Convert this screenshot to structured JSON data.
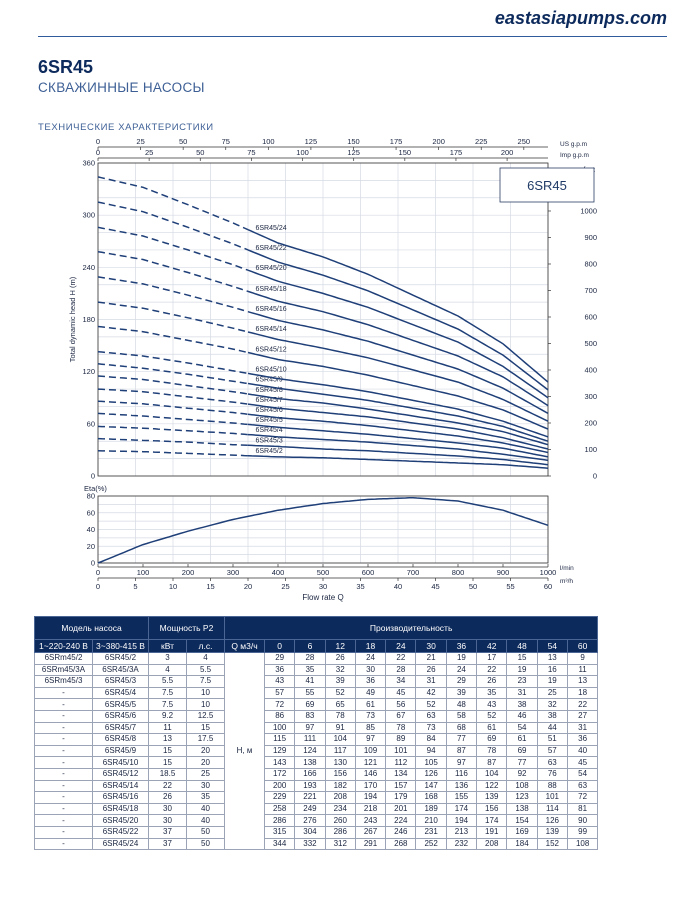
{
  "brand": "eastasiapumps.com",
  "header": {
    "title": "6SR45",
    "subtitle": "СКВАЖИННЫЕ НАСОСЫ",
    "section": "ТЕХНИЧЕСКИЕ ХАРАКТЕРИСТИКИ"
  },
  "colors": {
    "navy": "#0d2a5c",
    "curve": "#1f3f78",
    "grid": "#d5dae3"
  },
  "chart_data": [
    {
      "type": "line",
      "title": "6SR45",
      "ylabel": "Total dynamic head H (m)",
      "ylabel_right": "feet",
      "xlabel": "Flow rate Q",
      "xlim": [
        0,
        60
      ],
      "ylim": [
        0,
        360
      ],
      "yticks": [
        0,
        60,
        120,
        180,
        240,
        300,
        360
      ],
      "feet_ticks": [
        0,
        100,
        200,
        300,
        400,
        500,
        600,
        700,
        800,
        900,
        1000
      ],
      "top_axes": [
        {
          "unit": "US g.p.m",
          "ticks": [
            "0",
            "25",
            "50",
            "75",
            "100",
            "125",
            "150",
            "175",
            "200",
            "225",
            "250"
          ],
          "max": 264.2
        },
        {
          "unit": "Imp g.p.m",
          "ticks": [
            "0",
            "25",
            "50",
            "75",
            "100",
            "125",
            "150",
            "175",
            "200"
          ],
          "max": 220
        }
      ],
      "x": [
        0,
        6,
        12,
        18,
        24,
        30,
        36,
        42,
        48,
        54,
        60
      ],
      "dashed_until": 20,
      "series": [
        {
          "name": "6SR45/2",
          "values": [
            29,
            28,
            26,
            24,
            22,
            21,
            19,
            17,
            15,
            13,
            9
          ]
        },
        {
          "name": "6SR45/3",
          "values": [
            43,
            41,
            39,
            36,
            34,
            31,
            29,
            26,
            23,
            19,
            13
          ]
        },
        {
          "name": "6SR45/4",
          "values": [
            57,
            55,
            52,
            49,
            45,
            42,
            39,
            35,
            31,
            25,
            18
          ]
        },
        {
          "name": "6SR45/5",
          "values": [
            72,
            69,
            65,
            61,
            56,
            52,
            48,
            43,
            38,
            32,
            22
          ]
        },
        {
          "name": "6SR45/6",
          "values": [
            86,
            83,
            78,
            73,
            67,
            63,
            58,
            52,
            46,
            38,
            27
          ]
        },
        {
          "name": "6SR45/7",
          "values": [
            100,
            97,
            91,
            85,
            78,
            73,
            68,
            61,
            54,
            44,
            31
          ]
        },
        {
          "name": "6SR45/8",
          "values": [
            115,
            111,
            104,
            97,
            89,
            84,
            77,
            69,
            61,
            51,
            36
          ]
        },
        {
          "name": "6SR45/9",
          "values": [
            129,
            124,
            117,
            109,
            101,
            94,
            87,
            78,
            69,
            57,
            40
          ]
        },
        {
          "name": "6SR45/10",
          "values": [
            143,
            138,
            130,
            121,
            112,
            105,
            97,
            87,
            77,
            63,
            45
          ]
        },
        {
          "name": "6SR45/12",
          "values": [
            172,
            166,
            156,
            146,
            134,
            126,
            116,
            104,
            92,
            76,
            54
          ]
        },
        {
          "name": "6SR45/14",
          "values": [
            200,
            193,
            182,
            170,
            157,
            147,
            136,
            122,
            108,
            88,
            63
          ]
        },
        {
          "name": "6SR45/16",
          "values": [
            229,
            221,
            208,
            194,
            179,
            168,
            155,
            139,
            123,
            101,
            72
          ]
        },
        {
          "name": "6SR45/18",
          "values": [
            258,
            249,
            234,
            218,
            201,
            189,
            174,
            156,
            138,
            114,
            81
          ]
        },
        {
          "name": "6SR45/20",
          "values": [
            286,
            276,
            260,
            243,
            224,
            210,
            194,
            174,
            154,
            126,
            90
          ]
        },
        {
          "name": "6SR45/22",
          "values": [
            315,
            304,
            286,
            267,
            246,
            231,
            213,
            191,
            169,
            139,
            99
          ]
        },
        {
          "name": "6SR45/24",
          "values": [
            344,
            332,
            312,
            291,
            268,
            252,
            232,
            208,
            184,
            152,
            108
          ]
        }
      ]
    },
    {
      "type": "line",
      "ylabel": "Eta(%)",
      "ylim": [
        0,
        80
      ],
      "yticks": [
        0,
        20,
        40,
        60,
        80
      ],
      "xlabel": "Flow rate Q",
      "x_lmin_ticks": [
        "0",
        "100",
        "200",
        "300",
        "400",
        "500",
        "600",
        "700",
        "800",
        "900",
        "1000"
      ],
      "x_lmin_unit": "l/min",
      "x_m3h_ticks": [
        "0",
        "5",
        "10",
        "15",
        "20",
        "25",
        "30",
        "35",
        "40",
        "45",
        "50",
        "55",
        "60"
      ],
      "x_m3h_unit": "m³/h",
      "x": [
        0,
        6,
        12,
        18,
        24,
        30,
        36,
        42,
        48,
        54,
        60
      ],
      "values": [
        0,
        22,
        38,
        52,
        63,
        71,
        76,
        78,
        74,
        63,
        45
      ]
    }
  ],
  "table": {
    "model_header": "Модель насоса",
    "power_header": "Мощность Р2",
    "perf_header": "Производительность",
    "sub_headers": [
      "1~220-240 В",
      "3~380-415 В",
      "кВт",
      "л.с.",
      "Q м3/ч"
    ],
    "flows": [
      "0",
      "6",
      "12",
      "18",
      "24",
      "30",
      "36",
      "42",
      "48",
      "54",
      "60"
    ],
    "head_unit": "Н, м",
    "rows": [
      {
        "m1": "6SRm45/2",
        "m3": "6SR45/2",
        "kw": "3",
        "hp": "4",
        "h": [
          "29",
          "28",
          "26",
          "24",
          "22",
          "21",
          "19",
          "17",
          "15",
          "13",
          "9"
        ]
      },
      {
        "m1": "6SRm45/3A",
        "m3": "6SR45/3A",
        "kw": "4",
        "hp": "5.5",
        "h": [
          "36",
          "35",
          "32",
          "30",
          "28",
          "26",
          "24",
          "22",
          "19",
          "16",
          "11"
        ]
      },
      {
        "m1": "6SRm45/3",
        "m3": "6SR45/3",
        "kw": "5.5",
        "hp": "7.5",
        "h": [
          "43",
          "41",
          "39",
          "36",
          "34",
          "31",
          "29",
          "26",
          "23",
          "19",
          "13"
        ]
      },
      {
        "m1": "-",
        "m3": "6SR45/4",
        "kw": "7.5",
        "hp": "10",
        "h": [
          "57",
          "55",
          "52",
          "49",
          "45",
          "42",
          "39",
          "35",
          "31",
          "25",
          "18"
        ]
      },
      {
        "m1": "-",
        "m3": "6SR45/5",
        "kw": "7.5",
        "hp": "10",
        "h": [
          "72",
          "69",
          "65",
          "61",
          "56",
          "52",
          "48",
          "43",
          "38",
          "32",
          "22"
        ]
      },
      {
        "m1": "-",
        "m3": "6SR45/6",
        "kw": "9.2",
        "hp": "12.5",
        "h": [
          "86",
          "83",
          "78",
          "73",
          "67",
          "63",
          "58",
          "52",
          "46",
          "38",
          "27"
        ]
      },
      {
        "m1": "-",
        "m3": "6SR45/7",
        "kw": "11",
        "hp": "15",
        "h": [
          "100",
          "97",
          "91",
          "85",
          "78",
          "73",
          "68",
          "61",
          "54",
          "44",
          "31"
        ]
      },
      {
        "m1": "-",
        "m3": "6SR45/8",
        "kw": "13",
        "hp": "17.5",
        "h": [
          "115",
          "111",
          "104",
          "97",
          "89",
          "84",
          "77",
          "69",
          "61",
          "51",
          "36"
        ]
      },
      {
        "m1": "-",
        "m3": "6SR45/9",
        "kw": "15",
        "hp": "20",
        "h": [
          "129",
          "124",
          "117",
          "109",
          "101",
          "94",
          "87",
          "78",
          "69",
          "57",
          "40"
        ]
      },
      {
        "m1": "-",
        "m3": "6SR45/10",
        "kw": "15",
        "hp": "20",
        "h": [
          "143",
          "138",
          "130",
          "121",
          "112",
          "105",
          "97",
          "87",
          "77",
          "63",
          "45"
        ]
      },
      {
        "m1": "-",
        "m3": "6SR45/12",
        "kw": "18.5",
        "hp": "25",
        "h": [
          "172",
          "166",
          "156",
          "146",
          "134",
          "126",
          "116",
          "104",
          "92",
          "76",
          "54"
        ]
      },
      {
        "m1": "-",
        "m3": "6SR45/14",
        "kw": "22",
        "hp": "30",
        "h": [
          "200",
          "193",
          "182",
          "170",
          "157",
          "147",
          "136",
          "122",
          "108",
          "88",
          "63"
        ]
      },
      {
        "m1": "-",
        "m3": "6SR45/16",
        "kw": "26",
        "hp": "35",
        "h": [
          "229",
          "221",
          "208",
          "194",
          "179",
          "168",
          "155",
          "139",
          "123",
          "101",
          "72"
        ]
      },
      {
        "m1": "-",
        "m3": "6SR45/18",
        "kw": "30",
        "hp": "40",
        "h": [
          "258",
          "249",
          "234",
          "218",
          "201",
          "189",
          "174",
          "156",
          "138",
          "114",
          "81"
        ]
      },
      {
        "m1": "-",
        "m3": "6SR45/20",
        "kw": "30",
        "hp": "40",
        "h": [
          "286",
          "276",
          "260",
          "243",
          "224",
          "210",
          "194",
          "174",
          "154",
          "126",
          "90"
        ]
      },
      {
        "m1": "-",
        "m3": "6SR45/22",
        "kw": "37",
        "hp": "50",
        "h": [
          "315",
          "304",
          "286",
          "267",
          "246",
          "231",
          "213",
          "191",
          "169",
          "139",
          "99"
        ]
      },
      {
        "m1": "-",
        "m3": "6SR45/24",
        "kw": "37",
        "hp": "50",
        "h": [
          "344",
          "332",
          "312",
          "291",
          "268",
          "252",
          "232",
          "208",
          "184",
          "152",
          "108"
        ]
      }
    ]
  }
}
